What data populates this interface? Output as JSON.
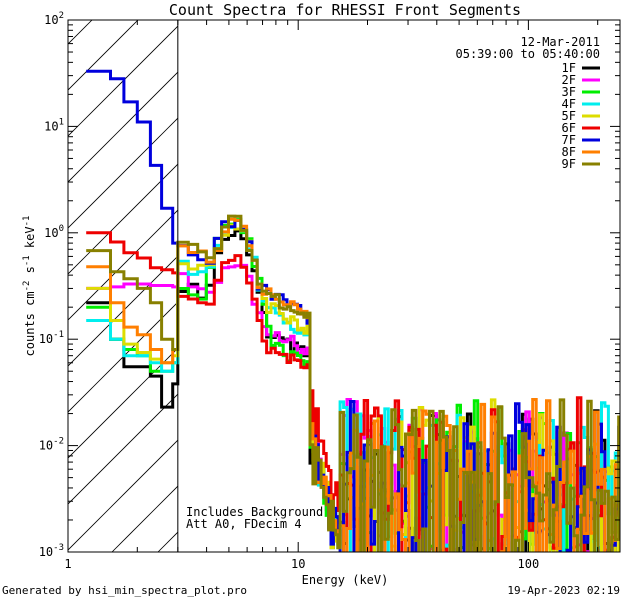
{
  "chart_data": {
    "type": "line",
    "title": "Count Spectra for RHESSI Front Segments",
    "xlabel": "Energy (keV)",
    "ylabel": "counts cm",
    "ylabel_sup1": "-2",
    "ylabel_mid": " s",
    "ylabel_sup2": "-1",
    "ylabel_end": " keV",
    "ylabel_sup3": "-1",
    "xscale": "log",
    "yscale": "log",
    "xlim": [
      1,
      250
    ],
    "ylim": [
      0.001,
      100
    ],
    "x_ticks": [
      {
        "value": 1,
        "label": "1"
      },
      {
        "value": 10,
        "label": "10"
      },
      {
        "value": 100,
        "label": "100"
      }
    ],
    "y_ticks": [
      {
        "value": 0.001,
        "base": "10",
        "exp": "-3"
      },
      {
        "value": 0.01,
        "base": "10",
        "exp": "-2"
      },
      {
        "value": 0.1,
        "base": "10",
        "exp": "-1"
      },
      {
        "value": 1,
        "base": "10",
        "exp": "0"
      },
      {
        "value": 10,
        "base": "10",
        "exp": "1"
      },
      {
        "value": 100,
        "base": "10",
        "exp": "2"
      }
    ],
    "hatched_region": [
      1,
      3
    ],
    "date": "12-Mar-2011",
    "time_range": "05:39:00 to 05:40:00",
    "annotations": [
      "Includes Background",
      "Att A0, FDecim 4"
    ],
    "series": [
      {
        "name": "1F",
        "color": "#000000",
        "lowE": [
          0.22,
          0.1,
          0.055,
          0.055,
          0.045,
          0.023,
          0.038,
          0.55
        ]
      },
      {
        "name": "2F",
        "color": "#ff00ff",
        "lowE": [
          0.3,
          0.31,
          0.33,
          0.33,
          0.32,
          0.32,
          0.31,
          0.6
        ]
      },
      {
        "name": "3F",
        "color": "#00ee00",
        "lowE": [
          0.2,
          0.1,
          0.08,
          0.07,
          0.05,
          0.05,
          0.06,
          0.45
        ]
      },
      {
        "name": "4F",
        "color": "#00eeee",
        "lowE": [
          0.15,
          0.1,
          0.07,
          0.07,
          0.06,
          0.05,
          0.06,
          0.9
        ]
      },
      {
        "name": "5F",
        "color": "#dddd00",
        "lowE": [
          0.3,
          0.15,
          0.09,
          0.075,
          0.065,
          0.06,
          0.07,
          1.0
        ]
      },
      {
        "name": "6F",
        "color": "#ee0000",
        "lowE": [
          1.0,
          0.82,
          0.65,
          0.58,
          0.47,
          0.45,
          0.42,
          0.42
        ]
      },
      {
        "name": "7F",
        "color": "#0000dd",
        "lowE": [
          33,
          28,
          17,
          11,
          4.3,
          1.7,
          0.8,
          1.3
        ]
      },
      {
        "name": "8F",
        "color": "#ff7f00",
        "lowE": [
          0.48,
          0.22,
          0.13,
          0.11,
          0.08,
          0.06,
          0.08,
          1.3
        ]
      },
      {
        "name": "9F",
        "color": "#888000",
        "lowE": [
          0.68,
          0.43,
          0.37,
          0.3,
          0.22,
          0.1,
          0.08,
          1.3
        ]
      }
    ]
  },
  "footer": {
    "generated_by": "Generated by hsi_min_spectra_plot.pro",
    "date_generated": "19-Apr-2023 02:19"
  }
}
